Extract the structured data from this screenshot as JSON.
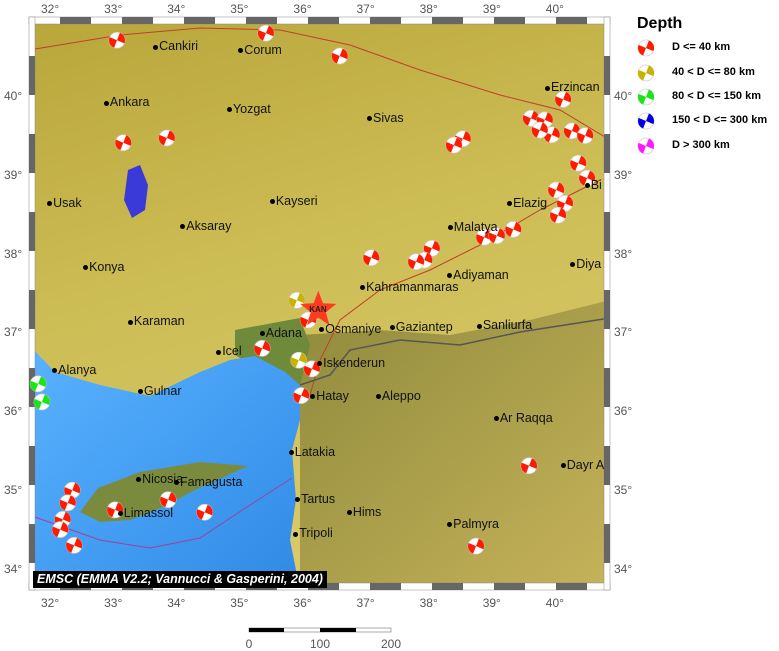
{
  "map": {
    "lon_ticks": [
      "32°",
      "33°",
      "34°",
      "35°",
      "36°",
      "37°",
      "38°",
      "39°",
      "40°"
    ],
    "lat_ticks": [
      "40°",
      "39°",
      "38°",
      "37°",
      "36°",
      "35°",
      "34°"
    ],
    "credit": "EMSC (EMMA V2.2; Vannucci & Gasperini, 2004)",
    "epicenter": {
      "label": "KAN",
      "lon": 36.22,
      "lat": 37.3,
      "color": "#ff3b1f"
    },
    "cities": [
      {
        "name": "Cankiri",
        "lon": 33.65,
        "lat": 40.63
      },
      {
        "name": "Corum",
        "lon": 35.0,
        "lat": 40.58
      },
      {
        "name": "Ankara",
        "lon": 32.87,
        "lat": 39.92
      },
      {
        "name": "Yozgat",
        "lon": 34.82,
        "lat": 39.84
      },
      {
        "name": "Sivas",
        "lon": 37.04,
        "lat": 39.72
      },
      {
        "name": "Erzincan",
        "lon": 39.86,
        "lat": 40.11
      },
      {
        "name": "Usak",
        "lon": 31.97,
        "lat": 38.64
      },
      {
        "name": "Kayseri",
        "lon": 35.5,
        "lat": 38.67
      },
      {
        "name": "Aksaray",
        "lon": 34.08,
        "lat": 38.35
      },
      {
        "name": "Elazig",
        "lon": 39.26,
        "lat": 38.64
      },
      {
        "name": "Bi",
        "lon": 40.49,
        "lat": 38.87
      },
      {
        "name": "Malatya",
        "lon": 38.32,
        "lat": 38.34
      },
      {
        "name": "Konya",
        "lon": 32.54,
        "lat": 37.83
      },
      {
        "name": "Diya",
        "lon": 40.26,
        "lat": 37.87
      },
      {
        "name": "Adiyaman",
        "lon": 38.31,
        "lat": 37.73
      },
      {
        "name": "Kahramanmaras",
        "lon": 36.93,
        "lat": 37.58
      },
      {
        "name": "Karaman",
        "lon": 33.25,
        "lat": 37.14
      },
      {
        "name": "Osmaniye",
        "lon": 36.28,
        "lat": 37.04
      },
      {
        "name": "Gaziantep",
        "lon": 37.4,
        "lat": 37.07
      },
      {
        "name": "Sanliurfa",
        "lon": 38.78,
        "lat": 37.09
      },
      {
        "name": "Adana",
        "lon": 35.34,
        "lat": 36.99
      },
      {
        "name": "Icel",
        "lon": 34.65,
        "lat": 36.76
      },
      {
        "name": "Alanya",
        "lon": 32.05,
        "lat": 36.52
      },
      {
        "name": "Iskenderun",
        "lon": 36.25,
        "lat": 36.61
      },
      {
        "name": "Gulnar",
        "lon": 33.41,
        "lat": 36.26
      },
      {
        "name": "Aleppo",
        "lon": 37.18,
        "lat": 36.19
      },
      {
        "name": "Hatay",
        "lon": 36.14,
        "lat": 36.19
      },
      {
        "name": "Ar Raqqa",
        "lon": 39.05,
        "lat": 35.91
      },
      {
        "name": "Latakia",
        "lon": 35.8,
        "lat": 35.48
      },
      {
        "name": "Dayr A",
        "lon": 40.11,
        "lat": 35.32
      },
      {
        "name": "Nicosia",
        "lon": 33.38,
        "lat": 35.14
      },
      {
        "name": "Famagusta",
        "lon": 33.98,
        "lat": 35.1
      },
      {
        "name": "Tartus",
        "lon": 35.9,
        "lat": 34.89
      },
      {
        "name": "Hims",
        "lon": 36.72,
        "lat": 34.72
      },
      {
        "name": "Limassol",
        "lon": 33.09,
        "lat": 34.71
      },
      {
        "name": "Palmyra",
        "lon": 38.31,
        "lat": 34.57
      },
      {
        "name": "Tripoli",
        "lon": 35.87,
        "lat": 34.45
      }
    ],
    "events": [
      {
        "lon": 33.03,
        "lat": 40.72,
        "d": 0
      },
      {
        "lon": 35.39,
        "lat": 40.81,
        "d": 0
      },
      {
        "lon": 36.56,
        "lat": 40.52,
        "d": 0
      },
      {
        "lon": 33.82,
        "lat": 39.48,
        "d": 0
      },
      {
        "lon": 33.13,
        "lat": 39.42,
        "d": 0
      },
      {
        "lon": 38.51,
        "lat": 39.47,
        "d": 0
      },
      {
        "lon": 38.37,
        "lat": 39.39,
        "d": 0
      },
      {
        "lon": 40.1,
        "lat": 39.97,
        "d": 0
      },
      {
        "lon": 39.59,
        "lat": 39.73,
        "d": 0
      },
      {
        "lon": 39.81,
        "lat": 39.71,
        "d": 0
      },
      {
        "lon": 39.92,
        "lat": 39.52,
        "d": 0
      },
      {
        "lon": 39.73,
        "lat": 39.58,
        "d": 0
      },
      {
        "lon": 40.24,
        "lat": 39.57,
        "d": 0
      },
      {
        "lon": 40.45,
        "lat": 39.51,
        "d": 0
      },
      {
        "lon": 40.34,
        "lat": 39.16,
        "d": 0
      },
      {
        "lon": 40.48,
        "lat": 38.97,
        "d": 0
      },
      {
        "lon": 39.99,
        "lat": 38.82,
        "d": 0
      },
      {
        "lon": 40.13,
        "lat": 38.65,
        "d": 0
      },
      {
        "lon": 40.02,
        "lat": 38.5,
        "d": 0
      },
      {
        "lon": 39.31,
        "lat": 38.32,
        "d": 0
      },
      {
        "lon": 38.85,
        "lat": 38.22,
        "d": 0
      },
      {
        "lon": 39.05,
        "lat": 38.24,
        "d": 0
      },
      {
        "lon": 38.02,
        "lat": 38.08,
        "d": 0
      },
      {
        "lon": 37.9,
        "lat": 37.93,
        "d": 0
      },
      {
        "lon": 37.77,
        "lat": 37.91,
        "d": 0
      },
      {
        "lon": 37.06,
        "lat": 37.96,
        "d": 0
      },
      {
        "lon": 36.06,
        "lat": 37.17,
        "d": 0
      },
      {
        "lon": 35.33,
        "lat": 36.81,
        "d": 0
      },
      {
        "lon": 36.12,
        "lat": 36.55,
        "d": 0
      },
      {
        "lon": 35.95,
        "lat": 36.21,
        "d": 0
      },
      {
        "lon": 39.56,
        "lat": 35.32,
        "d": 0
      },
      {
        "lon": 38.72,
        "lat": 34.3,
        "d": 0
      },
      {
        "lon": 34.42,
        "lat": 34.73,
        "d": 0
      },
      {
        "lon": 33.84,
        "lat": 34.89,
        "d": 0
      },
      {
        "lon": 33.0,
        "lat": 34.76,
        "d": 0
      },
      {
        "lon": 32.32,
        "lat": 35.01,
        "d": 0
      },
      {
        "lon": 32.25,
        "lat": 34.85,
        "d": 0
      },
      {
        "lon": 32.17,
        "lat": 34.64,
        "d": 0
      },
      {
        "lon": 32.13,
        "lat": 34.51,
        "d": 0
      },
      {
        "lon": 32.35,
        "lat": 34.31,
        "d": 0
      },
      {
        "lon": 35.88,
        "lat": 37.42,
        "d": 1
      },
      {
        "lon": 35.91,
        "lat": 36.66,
        "d": 1
      },
      {
        "lon": 31.78,
        "lat": 36.36,
        "d": 2
      },
      {
        "lon": 31.84,
        "lat": 36.13,
        "d": 2
      }
    ]
  },
  "legend": {
    "title": "Depth",
    "items": [
      {
        "label": "D <= 40 km",
        "color": "#ff1a00"
      },
      {
        "label": "40 < D <= 80 km",
        "color": "#c8b400"
      },
      {
        "label": "80 < D <= 150 km",
        "color": "#19e619"
      },
      {
        "label": "150 < D <= 300 km",
        "color": "#0000e0"
      },
      {
        "label": "D > 300 km",
        "color": "#ff19ff"
      }
    ]
  },
  "scale_bar": {
    "labels": [
      "0",
      "100",
      "200"
    ]
  }
}
